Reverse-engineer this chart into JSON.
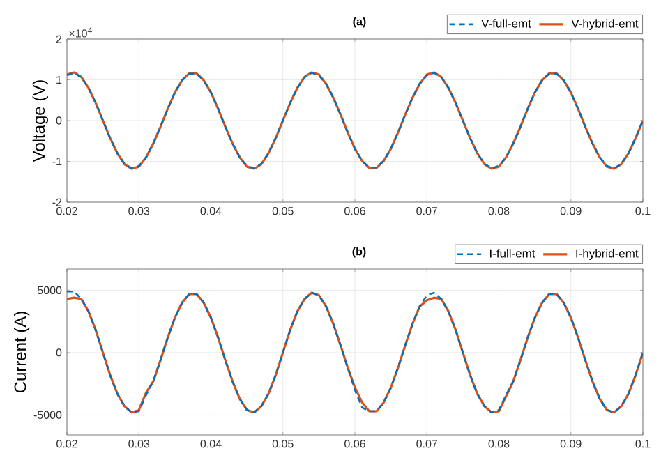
{
  "chart_data": [
    {
      "type": "line",
      "title": "(a)",
      "ylabel": "Voltage (V)",
      "annotations": [
        "×10$^{4}$"
      ],
      "legend": "top right",
      "grid": true,
      "marker": "none",
      "x": [
        0.02,
        0.021,
        0.022,
        0.023,
        0.024,
        0.025,
        0.026,
        0.027,
        0.028,
        0.029,
        0.03,
        0.031,
        0.032,
        0.033,
        0.034,
        0.035,
        0.036,
        0.037,
        0.038,
        0.039,
        0.04,
        0.041,
        0.042,
        0.043,
        0.044,
        0.045,
        0.046,
        0.047,
        0.048,
        0.049,
        0.05,
        0.051,
        0.052,
        0.053,
        0.054,
        0.055,
        0.056,
        0.057,
        0.058,
        0.059,
        0.06,
        0.061,
        0.062,
        0.063,
        0.064,
        0.065,
        0.066,
        0.067,
        0.068,
        0.069,
        0.07,
        0.071,
        0.072,
        0.073,
        0.074,
        0.075,
        0.076,
        0.077,
        0.078,
        0.079,
        0.08,
        0.081,
        0.082,
        0.083,
        0.084,
        0.085,
        0.086,
        0.087,
        0.088,
        0.089,
        0.09,
        0.091,
        0.092,
        0.093,
        0.094,
        0.095,
        0.096,
        0.097,
        0.098,
        0.099,
        0.1
      ],
      "series": [
        {
          "name": "V-full-emt",
          "color": "#0072bd",
          "line_style": "dashed",
          "values": [
            1.11,
            1.17,
            1.06,
            0.8,
            0.43,
            0,
            -0.43,
            -0.8,
            -1.06,
            -1.17,
            -1.11,
            -0.9,
            -0.56,
            -0.15,
            0.29,
            0.69,
            0.99,
            1.15,
            1.15,
            0.99,
            0.69,
            0.29,
            -0.15,
            -0.56,
            -0.9,
            -1.11,
            -1.17,
            -1.06,
            -0.8,
            -0.43,
            0,
            0.43,
            0.8,
            1.06,
            1.17,
            1.11,
            0.9,
            0.56,
            0.15,
            -0.29,
            -0.69,
            -0.99,
            -1.15,
            -1.15,
            -0.99,
            -0.69,
            -0.29,
            0.15,
            0.56,
            0.9,
            1.11,
            1.17,
            1.06,
            0.8,
            0.43,
            0,
            -0.43,
            -0.8,
            -1.06,
            -1.17,
            -1.11,
            -0.9,
            -0.56,
            -0.15,
            0.29,
            0.69,
            0.99,
            1.15,
            1.15,
            0.99,
            0.69,
            0.29,
            -0.15,
            -0.56,
            -0.9,
            -1.11,
            -1.17,
            -1.06,
            -0.8,
            -0.43,
            0
          ]
        },
        {
          "name": "V-hybrid-emt",
          "color": "#d95319",
          "line_style": "solid",
          "values": [
            1.13,
            1.18,
            1.07,
            0.8,
            0.43,
            0,
            -0.43,
            -0.8,
            -1.07,
            -1.18,
            -1.13,
            -0.9,
            -0.56,
            -0.15,
            0.29,
            0.69,
            0.99,
            1.16,
            1.16,
            0.99,
            0.69,
            0.29,
            -0.15,
            -0.56,
            -0.9,
            -1.13,
            -1.18,
            -1.07,
            -0.8,
            -0.43,
            0,
            0.43,
            0.8,
            1.07,
            1.18,
            1.13,
            0.9,
            0.56,
            0.15,
            -0.29,
            -0.69,
            -0.99,
            -1.16,
            -1.16,
            -0.99,
            -0.69,
            -0.29,
            0.15,
            0.56,
            0.9,
            1.13,
            1.18,
            1.07,
            0.8,
            0.43,
            0,
            -0.43,
            -0.8,
            -1.07,
            -1.18,
            -1.13,
            -0.9,
            -0.56,
            -0.15,
            0.29,
            0.69,
            0.99,
            1.16,
            1.16,
            0.99,
            0.69,
            0.29,
            -0.15,
            -0.56,
            -0.9,
            -1.13,
            -1.18,
            -1.07,
            -0.8,
            -0.43,
            0
          ]
        }
      ],
      "xlim": [
        0.02,
        0.1
      ],
      "xticks": [
        0.02,
        0.03,
        0.04,
        0.05,
        0.06,
        0.07,
        0.08,
        0.09,
        0.1
      ],
      "ylim": [
        -2,
        2
      ],
      "yticks": [
        -2,
        -1,
        0,
        1,
        2
      ]
    },
    {
      "type": "line",
      "title": "(b)",
      "ylabel": "Current (A)",
      "legend": "top right",
      "grid": true,
      "marker": "none",
      "x": [
        0.02,
        0.021,
        0.022,
        0.023,
        0.024,
        0.025,
        0.026,
        0.027,
        0.028,
        0.029,
        0.03,
        0.031,
        0.032,
        0.033,
        0.034,
        0.035,
        0.036,
        0.037,
        0.038,
        0.039,
        0.04,
        0.041,
        0.042,
        0.043,
        0.044,
        0.045,
        0.046,
        0.047,
        0.048,
        0.049,
        0.05,
        0.051,
        0.052,
        0.053,
        0.054,
        0.055,
        0.056,
        0.057,
        0.058,
        0.059,
        0.06,
        0.061,
        0.062,
        0.063,
        0.064,
        0.065,
        0.066,
        0.067,
        0.068,
        0.069,
        0.07,
        0.071,
        0.072,
        0.073,
        0.074,
        0.075,
        0.076,
        0.077,
        0.078,
        0.079,
        0.08,
        0.081,
        0.082,
        0.083,
        0.084,
        0.085,
        0.086,
        0.087,
        0.088,
        0.089,
        0.09,
        0.091,
        0.092,
        0.093,
        0.094,
        0.095,
        0.096,
        0.097,
        0.098,
        0.099,
        0.1
      ],
      "series": [
        {
          "name": "I-full-emt",
          "color": "#0072bd",
          "line_style": "dashed",
          "values": [
            4900,
            4900,
            4300,
            3300,
            1800,
            0,
            -1800,
            -3300,
            -4300,
            -4800,
            -4700,
            -3400,
            -2300,
            -600,
            1200,
            2800,
            4000,
            4700,
            4700,
            4000,
            2800,
            1200,
            -600,
            -2300,
            -3700,
            -4600,
            -4800,
            -4300,
            -3300,
            -1800,
            0,
            1800,
            3300,
            4300,
            4800,
            4600,
            3700,
            2300,
            600,
            -1200,
            -3000,
            -4400,
            -4700,
            -4700,
            -4000,
            -2800,
            -1200,
            600,
            2300,
            3700,
            4600,
            4800,
            4300,
            3300,
            1800,
            0,
            -1800,
            -3300,
            -4300,
            -4800,
            -4600,
            -3400,
            -2300,
            -600,
            1200,
            2800,
            4000,
            4700,
            4700,
            4000,
            2800,
            1200,
            -600,
            -2300,
            -3700,
            -4600,
            -4800,
            -4300,
            -3300,
            -1800,
            0
          ]
        },
        {
          "name": "I-hybrid-emt",
          "color": "#d95319",
          "line_style": "solid",
          "values": [
            4300,
            4400,
            4300,
            3300,
            1800,
            0,
            -1800,
            -3300,
            -4300,
            -4800,
            -4600,
            -3200,
            -2300,
            -600,
            1200,
            2800,
            4000,
            4700,
            4700,
            4000,
            2800,
            1200,
            -600,
            -2300,
            -3700,
            -4600,
            -4800,
            -4300,
            -3300,
            -1800,
            0,
            1800,
            3300,
            4300,
            4800,
            4600,
            3700,
            2300,
            600,
            -1200,
            -2800,
            -4000,
            -4700,
            -4700,
            -4000,
            -2800,
            -1200,
            600,
            2300,
            3700,
            4200,
            4400,
            4300,
            3300,
            1800,
            0,
            -1800,
            -3300,
            -4300,
            -4800,
            -4700,
            -3500,
            -2300,
            -600,
            1200,
            2800,
            4000,
            4700,
            4700,
            4000,
            2800,
            1200,
            -600,
            -2300,
            -3700,
            -4600,
            -4800,
            -4300,
            -3300,
            -1800,
            0
          ]
        }
      ],
      "xlim": [
        0.02,
        0.1
      ],
      "xticks": [
        0.02,
        0.03,
        0.04,
        0.05,
        0.06,
        0.07,
        0.08,
        0.09,
        0.1
      ],
      "ylim": [
        -6600,
        6700
      ],
      "yticks": [
        -5000,
        0,
        5000
      ]
    }
  ]
}
